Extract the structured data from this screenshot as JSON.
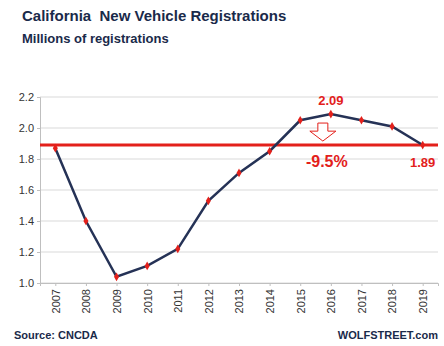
{
  "chart_data": {
    "type": "line",
    "title": "California  New Vehicle Registrations",
    "subtitle": "Millions of registrations",
    "categories": [
      "2007",
      "2008",
      "2009",
      "2010",
      "2011",
      "2012",
      "2013",
      "2014",
      "2015",
      "2016",
      "2017",
      "2018",
      "2019"
    ],
    "values": [
      1.87,
      1.4,
      1.04,
      1.11,
      1.22,
      1.53,
      1.71,
      1.85,
      2.05,
      2.09,
      2.05,
      2.01,
      1.89
    ],
    "color": "#253256",
    "marker": "diamond",
    "ylim": [
      1.0,
      2.2
    ],
    "yticks": [
      {
        "value": 1.0,
        "label": "1.0"
      },
      1.2,
      1.4,
      1.6,
      1.8,
      {
        "value": 2.0,
        "label": "2.0"
      },
      2.2
    ],
    "grid": true,
    "reference_line": 1.89,
    "annotations": [
      "2.09",
      "-9.5%",
      "1.89"
    ],
    "source": "Source: CNCDA",
    "credit": "WOLFSTREET.com"
  }
}
